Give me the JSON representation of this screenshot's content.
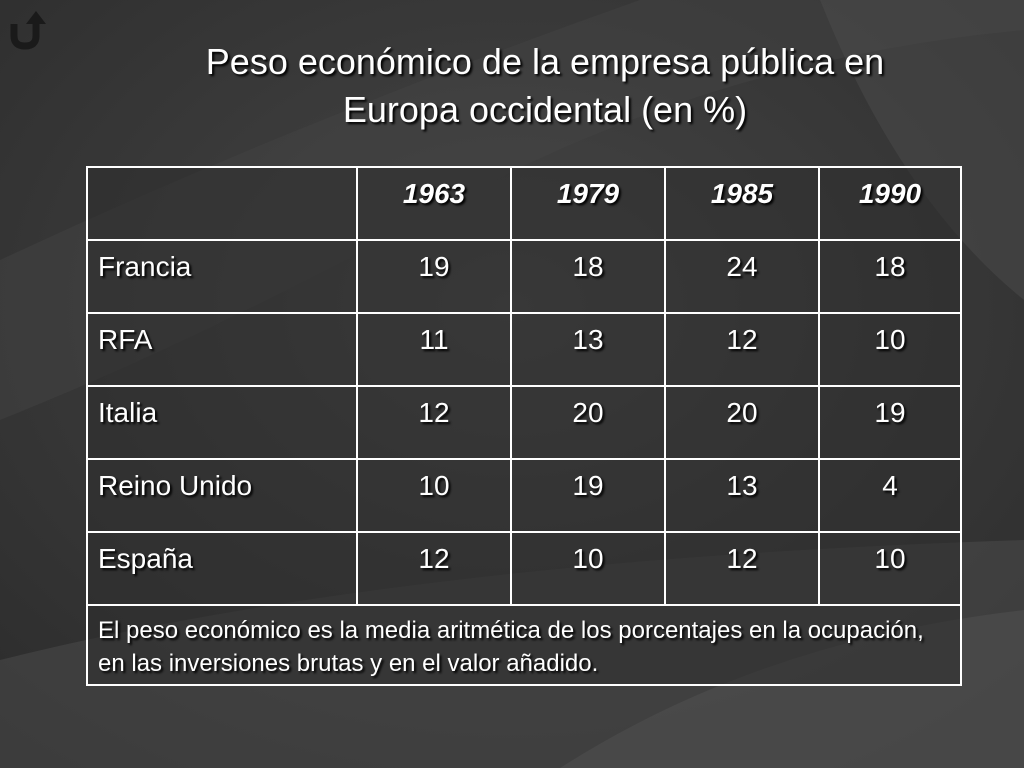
{
  "colors": {
    "background": "#3a3a3a",
    "text": "#ffffff",
    "border": "#ffffff"
  },
  "nav": {
    "back_icon": "return-arrow-icon"
  },
  "title": {
    "line1": "Peso económico de la empresa pública en",
    "line2": "Europa occidental (en %)"
  },
  "table": {
    "header": [
      "",
      "1963",
      "1979",
      "1985",
      "1990"
    ],
    "rows": [
      {
        "country": "Francia",
        "values": [
          "19",
          "18",
          "24",
          "18"
        ]
      },
      {
        "country": "RFA",
        "values": [
          "11",
          "13",
          "12",
          "10"
        ]
      },
      {
        "country": "Italia",
        "values": [
          "12",
          "20",
          "20",
          "19"
        ]
      },
      {
        "country": "Reino Unido",
        "values": [
          "10",
          "19",
          "13",
          "4"
        ]
      },
      {
        "country": "España",
        "values": [
          "12",
          "10",
          "12",
          "10"
        ]
      }
    ],
    "note": "El peso económico es la media aritmética de los porcentajes en la ocupación, en las inversiones brutas y en el valor añadido."
  }
}
